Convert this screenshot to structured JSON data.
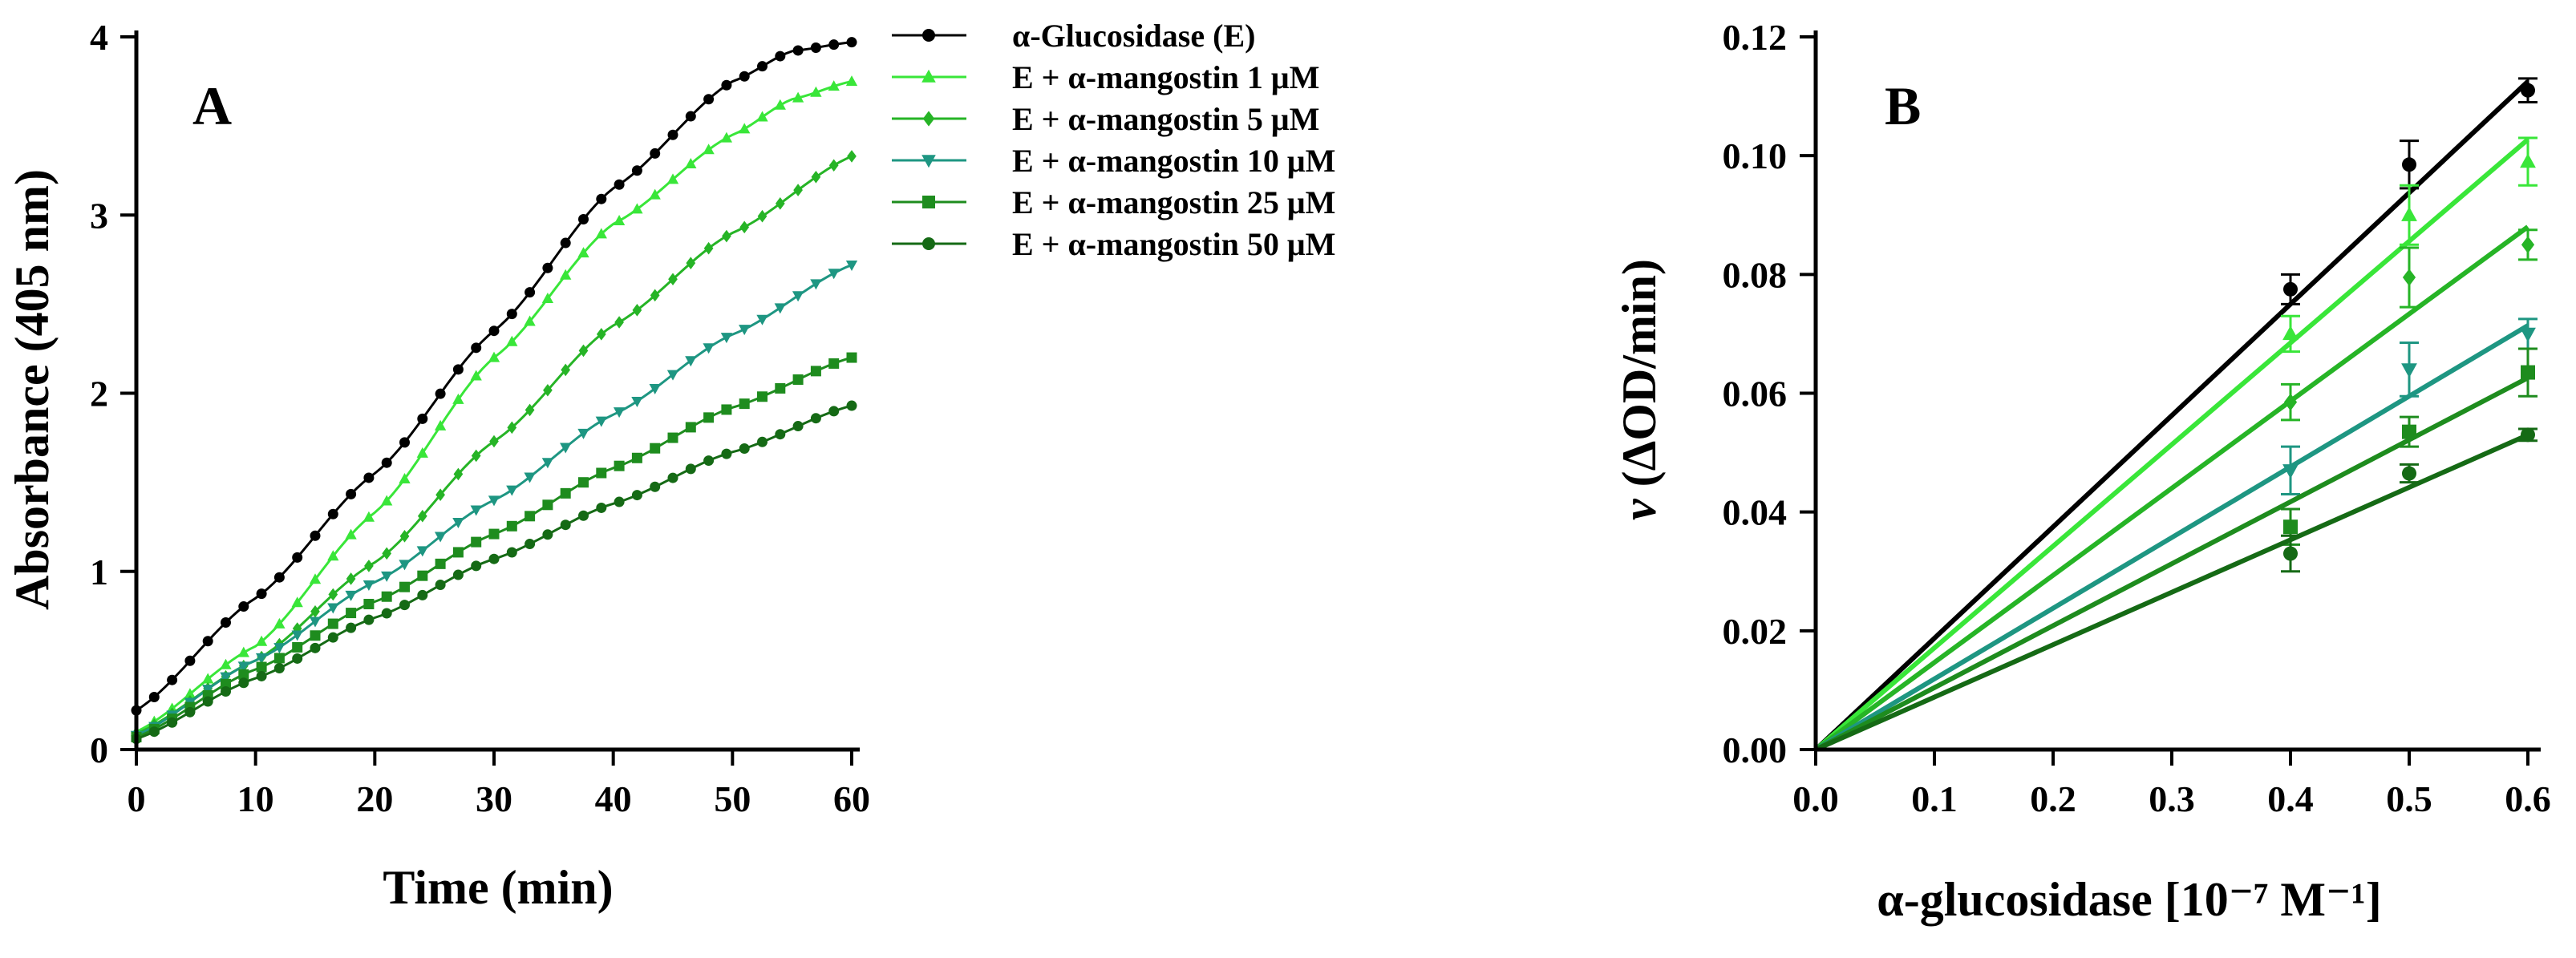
{
  "figure": {
    "colors": {
      "E": "#000000",
      "c1": "#39e639",
      "c5": "#26b426",
      "c10": "#1e9682",
      "c25": "#1e8c1e",
      "c50": "#156a15"
    }
  },
  "chart_data": [
    {
      "panel": "A",
      "type": "line",
      "title": "",
      "xlabel": "Time (min)",
      "ylabel": "Absorbance (405 nm)",
      "xlim": [
        0,
        60
      ],
      "ylim": [
        0,
        4
      ],
      "xticks": [
        0,
        10,
        20,
        30,
        40,
        50,
        60
      ],
      "yticks": [
        0,
        1,
        2,
        3,
        4
      ],
      "grid": false,
      "legend_position": "right",
      "series": [
        {
          "key": "E",
          "name": "α-Glucosidase (E)",
          "marker": "circle",
          "points": [
            [
              0,
              0.22
            ],
            [
              10,
              0.85
            ],
            [
              20,
              1.55
            ],
            [
              30,
              2.35
            ],
            [
              40,
              3.15
            ],
            [
              50,
              3.75
            ],
            [
              55,
              3.92
            ],
            [
              60,
              3.97
            ]
          ]
        },
        {
          "key": "c1",
          "name": "E + α-mangostin 1 μM",
          "marker": "triangle-up",
          "points": [
            [
              0,
              0.1
            ],
            [
              10,
              0.58
            ],
            [
              20,
              1.33
            ],
            [
              30,
              2.2
            ],
            [
              40,
              2.95
            ],
            [
              50,
              3.45
            ],
            [
              55,
              3.65
            ],
            [
              60,
              3.75
            ]
          ]
        },
        {
          "key": "c5",
          "name": "E + α-mangostin 5 μM",
          "marker": "diamond",
          "points": [
            [
              0,
              0.09
            ],
            [
              10,
              0.5
            ],
            [
              20,
              1.05
            ],
            [
              30,
              1.73
            ],
            [
              40,
              2.38
            ],
            [
              50,
              2.9
            ],
            [
              60,
              3.33
            ]
          ]
        },
        {
          "key": "c10",
          "name": "E + α-mangostin 10 μM",
          "marker": "triangle-down",
          "points": [
            [
              0,
              0.08
            ],
            [
              10,
              0.5
            ],
            [
              20,
              0.94
            ],
            [
              30,
              1.4
            ],
            [
              40,
              1.88
            ],
            [
              50,
              2.33
            ],
            [
              60,
              2.72
            ]
          ]
        },
        {
          "key": "c25",
          "name": "E + α-mangostin 25 μM",
          "marker": "square",
          "points": [
            [
              0,
              0.07
            ],
            [
              10,
              0.45
            ],
            [
              20,
              0.83
            ],
            [
              30,
              1.21
            ],
            [
              40,
              1.58
            ],
            [
              50,
              1.92
            ],
            [
              60,
              2.2
            ]
          ]
        },
        {
          "key": "c50",
          "name": "E + α-mangostin 50 μM",
          "marker": "circle",
          "points": [
            [
              0,
              0.06
            ],
            [
              10,
              0.4
            ],
            [
              20,
              0.74
            ],
            [
              30,
              1.07
            ],
            [
              40,
              1.38
            ],
            [
              50,
              1.67
            ],
            [
              60,
              1.93
            ]
          ]
        }
      ]
    },
    {
      "panel": "B",
      "type": "scatter",
      "title": "",
      "xlabel": "α-glucosidase [10⁻⁷ M⁻¹]",
      "ylabel_italic": "v",
      "ylabel": " (ΔOD/min)",
      "xlim": [
        0,
        0.6
      ],
      "ylim": [
        0,
        0.12
      ],
      "xticks": [
        "0.0",
        "0.1",
        "0.2",
        "0.3",
        "0.4",
        "0.5",
        "0.6"
      ],
      "yticks": [
        "0.00",
        "0.02",
        "0.04",
        "0.06",
        "0.08",
        "0.10",
        "0.12"
      ],
      "grid": false,
      "fit": "linear through origin",
      "series": [
        {
          "key": "E",
          "name": "α-Glucosidase (E)",
          "marker": "circle",
          "slope": 0.1875,
          "x": [
            0.4,
            0.5,
            0.6
          ],
          "y": [
            0.0775,
            0.0985,
            0.111
          ],
          "err": [
            0.0025,
            0.004,
            0.002
          ]
        },
        {
          "key": "c1",
          "name": "E + α-mangostin 1 μM",
          "marker": "triangle-up",
          "slope": 0.1712,
          "x": [
            0.4,
            0.5,
            0.6
          ],
          "y": [
            0.07,
            0.09,
            0.099
          ],
          "err": [
            0.003,
            0.005,
            0.004
          ]
        },
        {
          "key": "c5",
          "name": "E + α-mangostin 5 μM",
          "marker": "diamond",
          "slope": 0.1467,
          "x": [
            0.4,
            0.5,
            0.6
          ],
          "y": [
            0.0585,
            0.0795,
            0.085
          ],
          "err": [
            0.003,
            0.005,
            0.0025
          ]
        },
        {
          "key": "c10",
          "name": "E + α-mangostin 10 μM",
          "marker": "triangle-down",
          "slope": 0.119,
          "x": [
            0.4,
            0.5,
            0.6
          ],
          "y": [
            0.047,
            0.064,
            0.07
          ],
          "err": [
            0.004,
            0.0045,
            0.0025
          ]
        },
        {
          "key": "c25",
          "name": "E + α-mangostin 25 μM",
          "marker": "square",
          "slope": 0.1043,
          "x": [
            0.4,
            0.5,
            0.6
          ],
          "y": [
            0.0375,
            0.0535,
            0.0635
          ],
          "err": [
            0.003,
            0.0025,
            0.004
          ]
        },
        {
          "key": "c50",
          "name": "E + α-mangostin 50 μM",
          "marker": "circle",
          "slope": 0.0883,
          "x": [
            0.4,
            0.5,
            0.6
          ],
          "y": [
            0.033,
            0.0465,
            0.053
          ],
          "err": [
            0.003,
            0.0015,
            0.001
          ]
        }
      ]
    }
  ]
}
